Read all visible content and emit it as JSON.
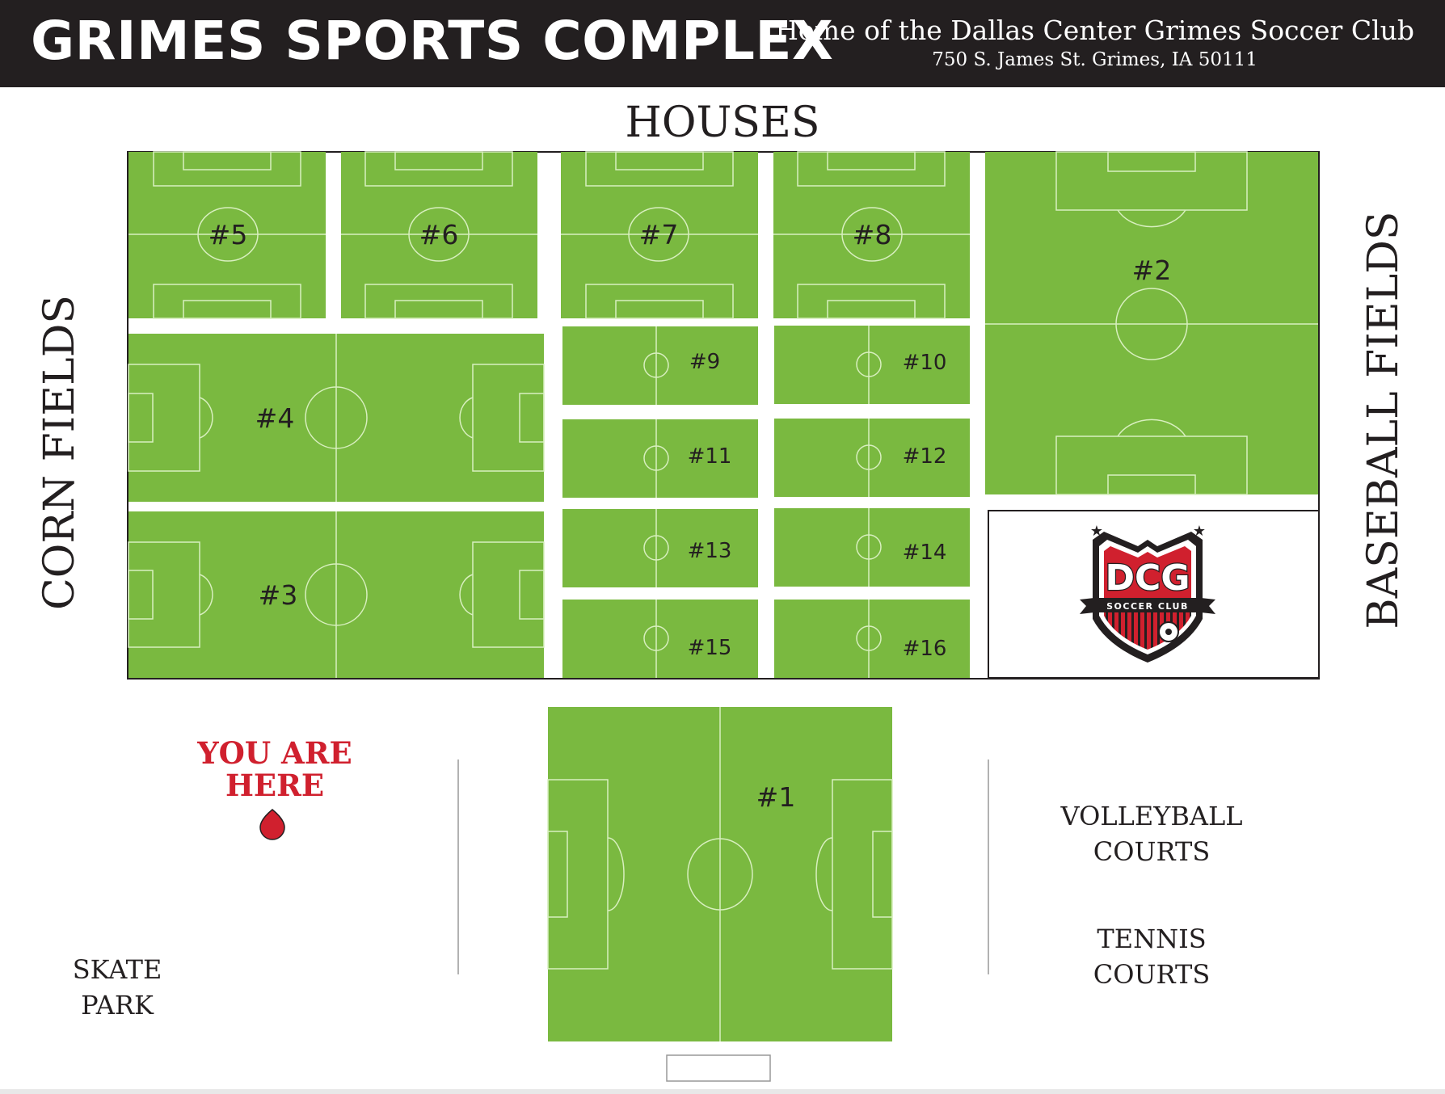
{
  "header": {
    "title": "GRIMES SPORTS COMPLEX",
    "subtitle": "Home of the Dallas Center Grimes Soccer Club",
    "address": "750 S. James St. Grimes, IA 50111"
  },
  "map_labels": {
    "north": "HOUSES",
    "west": "CORN FIELDS",
    "east": "BASEBALL FIELDS",
    "skate_park": [
      "SKATE",
      "PARK"
    ],
    "volleyball": [
      "VOLLEYBALL",
      "COURTS"
    ],
    "tennis": [
      "TENNIS",
      "COURTS"
    ]
  },
  "you_are_here": [
    "YOU ARE",
    "HERE"
  ],
  "fields": {
    "f5": "#5",
    "f6": "#6",
    "f7": "#7",
    "f8": "#8",
    "f2": "#2",
    "f4": "#4",
    "f3": "#3",
    "f1": "#1",
    "f9": "#9",
    "f10": "#10",
    "f11": "#11",
    "f12": "#12",
    "f13": "#13",
    "f14": "#14",
    "f15": "#15",
    "f16": "#16"
  },
  "logo": {
    "initials": "DCG",
    "text": "SOCCER CLUB"
  },
  "colors": {
    "grass": "#7ab940",
    "header": "#231f20",
    "accent": "#d0202e",
    "line": "#d8efbf"
  }
}
